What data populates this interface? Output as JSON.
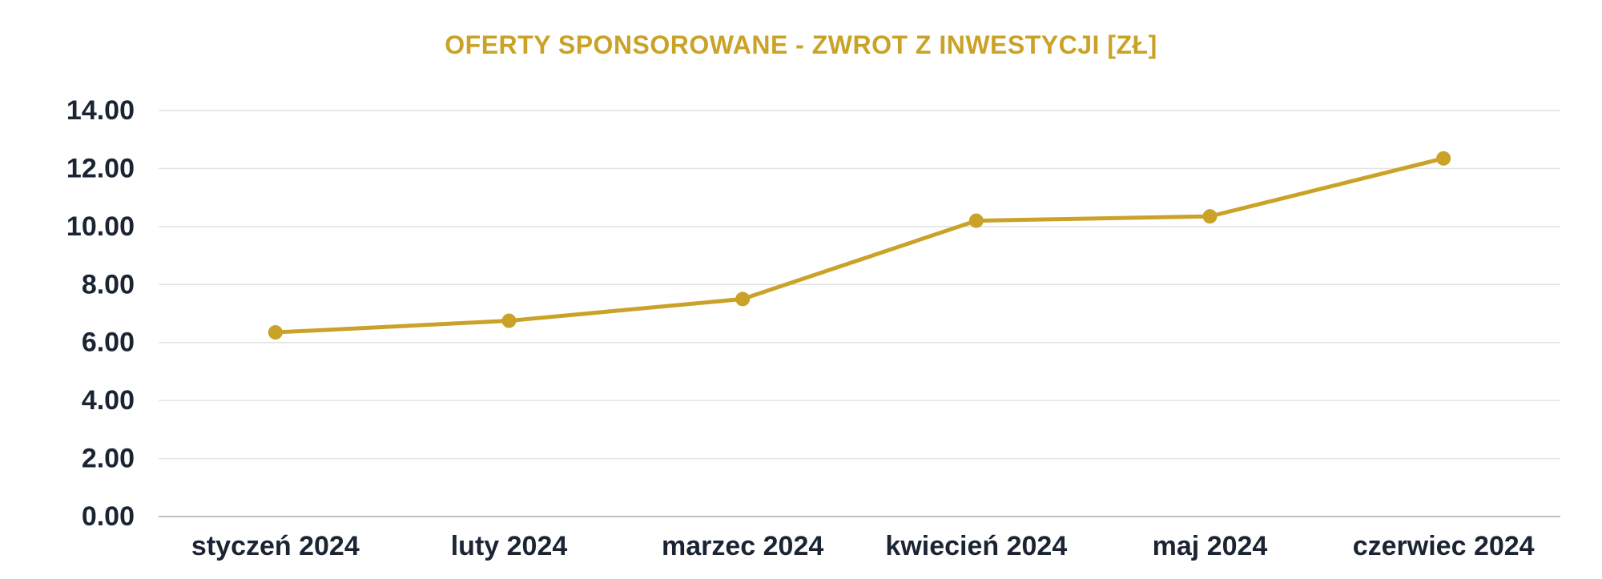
{
  "chart_data": {
    "type": "line",
    "title": "OFERTY SPONSOROWANE - ZWROT Z INWESTYCJI [ZŁ]",
    "categories": [
      "styczeń 2024",
      "luty 2024",
      "marzec 2024",
      "kwiecień 2024",
      "maj 2024",
      "czerwiec 2024"
    ],
    "series": [
      {
        "values": [
          6.35,
          6.75,
          7.5,
          10.2,
          10.35,
          12.35
        ]
      }
    ],
    "ylim": [
      0,
      14
    ],
    "yticks": [
      "0.00",
      "2.00",
      "4.00",
      "6.00",
      "8.00",
      "10.00",
      "12.00",
      "14.00"
    ],
    "grid": true,
    "xlabel": "",
    "ylabel": "",
    "colors": {
      "line": "#C9A227",
      "title": "#C9A227",
      "text": "#1B2433",
      "grid": "#E3E3E3",
      "axis": "#BFBFBF"
    }
  }
}
